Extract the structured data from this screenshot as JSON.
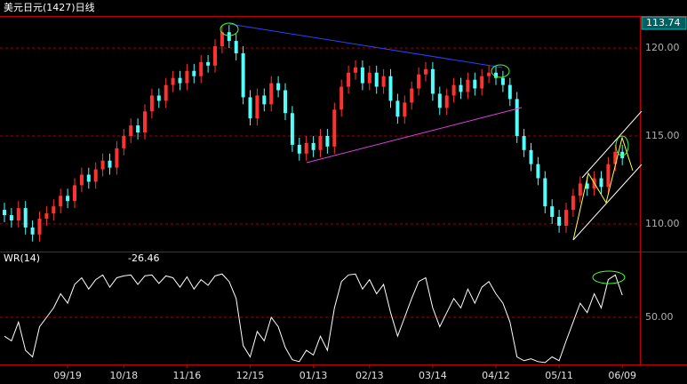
{
  "chart_data": {
    "type": "candlestick",
    "title": "美元日元(1427)日线",
    "categories": [
      null,
      null,
      null,
      null,
      null,
      null,
      null,
      null,
      null,
      "09/19",
      null,
      null,
      null,
      null,
      null,
      null,
      null,
      "10/18",
      null,
      null,
      null,
      null,
      null,
      null,
      null,
      null,
      "11/16",
      null,
      null,
      null,
      null,
      null,
      null,
      null,
      null,
      "12/15",
      null,
      null,
      null,
      null,
      null,
      null,
      null,
      null,
      "01/13",
      null,
      null,
      null,
      null,
      null,
      null,
      null,
      "02/13",
      null,
      null,
      null,
      null,
      null,
      null,
      null,
      null,
      "03/14",
      null,
      null,
      null,
      null,
      null,
      null,
      null,
      null,
      "04/12",
      null,
      null,
      null,
      null,
      null,
      null,
      null,
      null,
      "05/11",
      null,
      null,
      null,
      null,
      null,
      null,
      null,
      null,
      "06/09"
    ],
    "open": [
      110.8,
      110.5,
      110.2,
      110.9,
      109.8,
      109.4,
      110.3,
      110.6,
      111.0,
      111.6,
      111.3,
      112.2,
      112.8,
      112.4,
      113.1,
      113.6,
      113.2,
      114.3,
      115.0,
      115.6,
      115.2,
      116.4,
      117.3,
      117.0,
      117.9,
      118.3,
      118.0,
      118.7,
      118.4,
      119.2,
      119.0,
      120.1,
      120.9,
      120.4,
      119.7,
      117.2,
      116.0,
      117.3,
      116.8,
      118.0,
      117.6,
      116.3,
      114.5,
      114.0,
      114.6,
      114.2,
      115.0,
      114.4,
      116.5,
      117.8,
      118.6,
      118.9,
      118.0,
      118.6,
      117.8,
      118.4,
      117.0,
      116.1,
      116.9,
      117.7,
      118.5,
      118.8,
      117.4,
      116.6,
      117.3,
      117.9,
      117.5,
      118.2,
      117.7,
      118.4,
      118.6,
      118.3,
      117.9,
      117.1,
      115.0,
      114.2,
      113.4,
      112.6,
      111.0,
      110.4,
      109.9,
      110.8,
      111.6,
      112.3,
      112.0,
      112.6,
      112.1,
      113.4,
      114.1
    ],
    "high": [
      111.2,
      110.9,
      111.3,
      111.3,
      110.2,
      110.7,
      111.0,
      111.4,
      112.0,
      112.0,
      112.6,
      113.2,
      113.2,
      113.5,
      114.0,
      114.0,
      114.7,
      115.4,
      116.0,
      116.0,
      116.8,
      117.7,
      117.7,
      118.3,
      118.7,
      118.7,
      119.1,
      119.1,
      119.6,
      119.6,
      120.5,
      121.3,
      121.3,
      120.8,
      120.1,
      117.6,
      117.7,
      117.7,
      118.4,
      118.4,
      118.0,
      116.7,
      114.9,
      115.0,
      115.0,
      115.4,
      115.4,
      116.9,
      118.2,
      119.0,
      119.3,
      119.3,
      119.0,
      119.0,
      118.8,
      118.8,
      117.4,
      117.3,
      118.1,
      118.9,
      119.2,
      119.2,
      117.8,
      117.7,
      118.3,
      118.3,
      118.6,
      118.6,
      118.8,
      119.0,
      119.0,
      118.7,
      118.3,
      117.5,
      115.4,
      114.6,
      113.8,
      113.0,
      111.4,
      110.8,
      111.2,
      112.0,
      112.7,
      112.7,
      113.0,
      113.0,
      113.8,
      114.5,
      114.5
    ],
    "low": [
      110.1,
      109.8,
      109.8,
      109.4,
      109.0,
      109.0,
      109.9,
      110.2,
      110.6,
      110.9,
      110.9,
      111.8,
      112.0,
      112.0,
      112.7,
      112.8,
      112.8,
      113.9,
      114.6,
      114.8,
      114.8,
      116.0,
      116.6,
      116.6,
      117.5,
      117.6,
      117.6,
      118.0,
      118.0,
      118.6,
      118.6,
      119.7,
      120.0,
      119.3,
      116.8,
      115.6,
      115.6,
      116.4,
      116.4,
      117.2,
      115.9,
      114.1,
      113.6,
      113.6,
      113.8,
      113.8,
      114.0,
      114.0,
      116.1,
      117.4,
      118.2,
      117.6,
      117.6,
      117.4,
      117.4,
      116.6,
      115.7,
      115.7,
      116.5,
      117.3,
      118.1,
      117.0,
      116.2,
      116.2,
      116.9,
      117.1,
      117.1,
      117.3,
      117.3,
      118.0,
      117.9,
      117.5,
      116.7,
      114.6,
      113.8,
      113.0,
      112.2,
      110.6,
      110.0,
      109.5,
      109.5,
      110.4,
      111.2,
      111.6,
      111.6,
      111.7,
      111.7,
      113.0,
      113.34
    ],
    "close": [
      110.5,
      110.2,
      110.9,
      109.8,
      109.4,
      110.3,
      110.6,
      111.0,
      111.6,
      111.3,
      112.2,
      112.8,
      112.4,
      113.1,
      113.6,
      113.2,
      114.3,
      115.0,
      115.6,
      115.2,
      116.4,
      117.3,
      117.0,
      117.9,
      118.3,
      118.0,
      118.7,
      118.4,
      119.2,
      119.0,
      120.1,
      120.9,
      120.4,
      119.7,
      117.2,
      116.0,
      117.3,
      116.8,
      118.0,
      117.6,
      116.3,
      114.5,
      114.0,
      114.6,
      114.2,
      115.0,
      114.4,
      116.5,
      117.8,
      118.6,
      118.9,
      118.0,
      118.6,
      117.8,
      118.4,
      117.0,
      116.1,
      116.9,
      117.7,
      118.5,
      118.8,
      117.4,
      116.6,
      117.3,
      117.9,
      117.5,
      118.2,
      117.7,
      118.4,
      118.6,
      118.3,
      117.9,
      117.1,
      115.0,
      114.2,
      113.4,
      112.6,
      111.0,
      110.4,
      109.9,
      110.8,
      111.6,
      112.3,
      112.0,
      112.6,
      112.1,
      113.4,
      114.1,
      113.74
    ],
    "up_color": "#ff3232",
    "down_color": "#54fcfc",
    "ylim": [
      108.43,
      121.82
    ],
    "yticks": [
      {
        "value": 110,
        "label": "110.00"
      },
      {
        "value": 115,
        "label": "115.00"
      },
      {
        "value": 120,
        "label": "120.00"
      }
    ],
    "grid": true,
    "indicator": {
      "type": "line",
      "name": "WR(14)",
      "color": "#ffffff",
      "values": [
        -70,
        -75,
        -55,
        -85,
        -92,
        -60,
        -50,
        -40,
        -25,
        -35,
        -15,
        -8,
        -20,
        -10,
        -5,
        -18,
        -8,
        -6,
        -5,
        -15,
        -6,
        -5,
        -14,
        -6,
        -8,
        -18,
        -7,
        -20,
        -10,
        -16,
        -6,
        -4,
        -12,
        -30,
        -80,
        -92,
        -65,
        -75,
        -50,
        -60,
        -82,
        -95,
        -97,
        -85,
        -90,
        -70,
        -85,
        -40,
        -12,
        -5,
        -4,
        -20,
        -10,
        -25,
        -15,
        -45,
        -70,
        -50,
        -30,
        -12,
        -8,
        -40,
        -60,
        -45,
        -30,
        -40,
        -20,
        -35,
        -18,
        -12,
        -25,
        -35,
        -55,
        -92,
        -96,
        -94,
        -97,
        -98,
        -92,
        -96,
        -75,
        -55,
        -35,
        -45,
        -25,
        -40,
        -10,
        -5,
        -26.46
      ],
      "ylim": [
        -100,
        0
      ],
      "yticks": [
        {
          "value": -50,
          "label": "50.00"
        }
      ]
    }
  }
}
